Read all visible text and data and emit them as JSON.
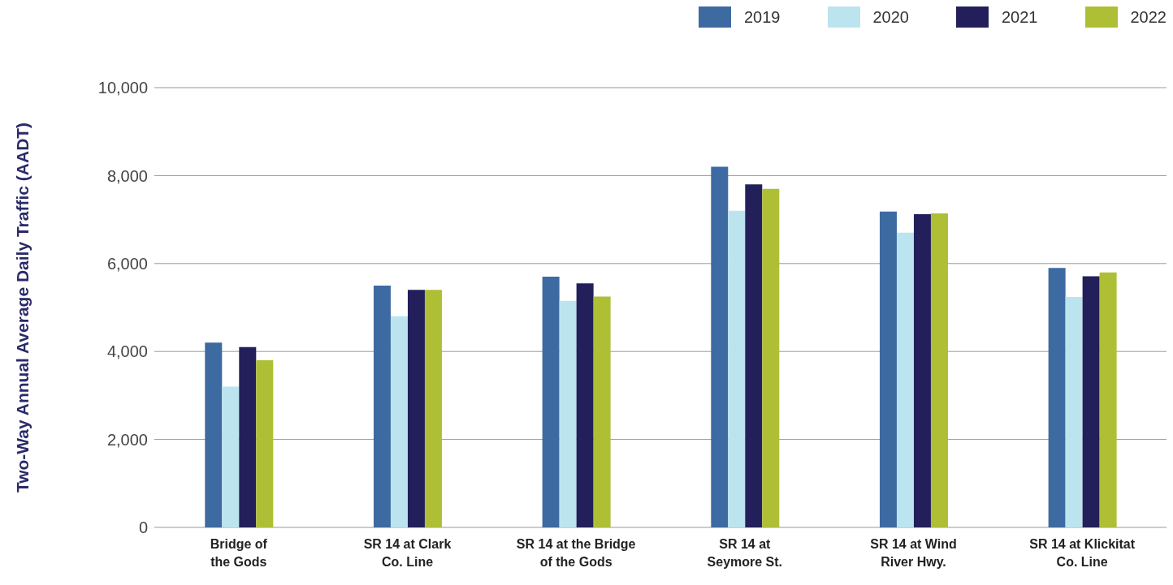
{
  "chart_data": {
    "type": "bar",
    "ylabel": "Two-Way Annual Average Daily Traffic (AADT)",
    "categories": [
      "Bridge of\nthe Gods",
      "SR 14 at Clark\nCo. Line",
      "SR 14 at the Bridge\nof the Gods",
      "SR 14 at\nSeymore St.",
      "SR 14 at Wind\nRiver Hwy.",
      "SR 14 at Klickitat\nCo. Line"
    ],
    "series": [
      {
        "name": "2019",
        "color": "#3d6aa1",
        "values": [
          4200,
          5500,
          5700,
          8200,
          7180,
          5900
        ]
      },
      {
        "name": "2020",
        "color": "#bce4ee",
        "values": [
          3200,
          4800,
          5150,
          7200,
          6700,
          5240
        ]
      },
      {
        "name": "2021",
        "color": "#221f5b",
        "values": [
          4100,
          5400,
          5550,
          7800,
          7120,
          5710
        ]
      },
      {
        "name": "2022",
        "color": "#afbf35",
        "values": [
          3800,
          5400,
          5250,
          7700,
          7140,
          5800
        ]
      }
    ],
    "ylim": [
      0,
      10000
    ],
    "yticks": [
      0,
      {
        "value": 2000,
        "label": "2,000"
      },
      {
        "value": 4000,
        "label": "4,000"
      },
      {
        "value": 6000,
        "label": "6,000"
      },
      {
        "value": 8000,
        "label": "8,000"
      },
      {
        "value": 10000,
        "label": "10,000"
      }
    ],
    "grid": "y",
    "legend": "top right"
  }
}
